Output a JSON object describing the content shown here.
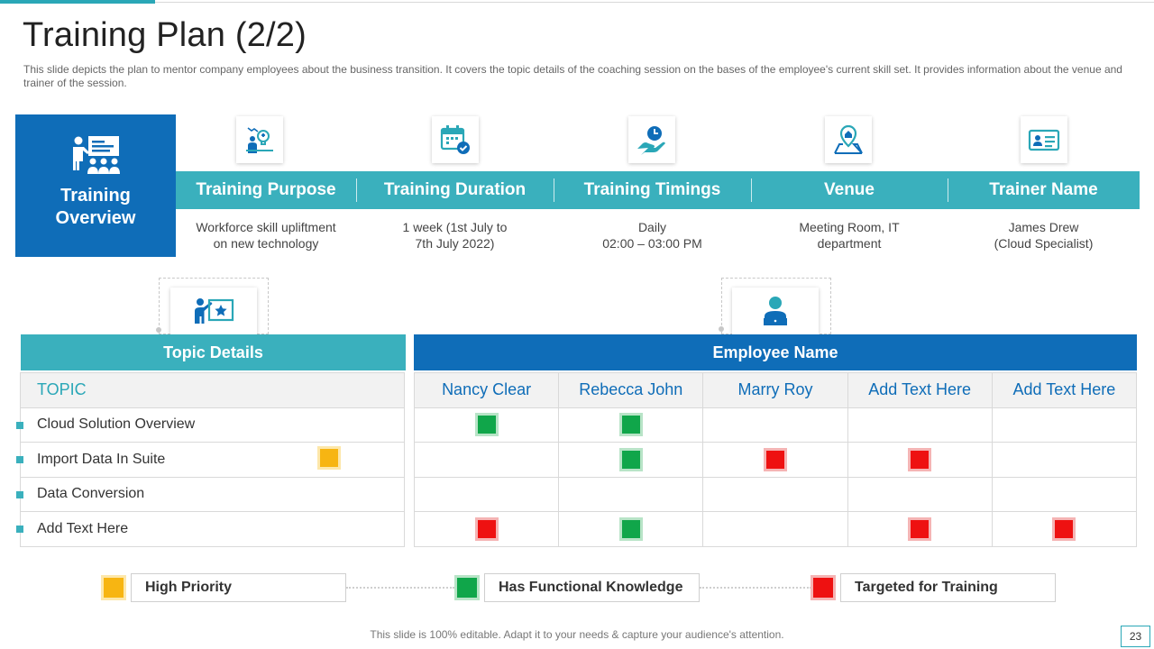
{
  "slide": {
    "title": "Training Plan (2/2)",
    "subtitle": "This slide depicts the plan to mentor company employees about the business transition. It covers  the topic details of the coaching session on the bases of the employee's current skill set. It provides  information about the venue  and trainer of the session.",
    "footer": "This slide is 100% editable. Adapt it to your needs & capture your audience's attention.",
    "page_number": "23"
  },
  "overview": {
    "label_line1": "Training",
    "label_line2": "Overview",
    "icon": "presentation-audience-icon",
    "columns": [
      {
        "header": "Training Purpose",
        "line1": "Workforce skill upliftment",
        "line2": "on new technology",
        "icon": "idea-person-icon"
      },
      {
        "header": "Training Duration",
        "line1": "1 week (1st July to",
        "line2": "7th July 2022)",
        "icon": "calendar-check-icon"
      },
      {
        "header": "Training Timings",
        "line1": "Daily",
        "line2": "02:00 – 03:00 PM",
        "icon": "clock-hand-icon"
      },
      {
        "header": "Venue",
        "line1": "Meeting Room, IT",
        "line2": "department",
        "icon": "location-map-icon"
      },
      {
        "header": "Trainer Name",
        "line1": "James Drew",
        "line2": "(Cloud Specialist)",
        "icon": "id-card-icon"
      }
    ]
  },
  "topics": {
    "header": "Topic Details",
    "column_label": "TOPIC",
    "icon": "teacher-board-icon",
    "items": [
      "Cloud Solution Overview",
      "Import Data In Suite",
      "Data Conversion",
      "Add Text Here"
    ]
  },
  "employees": {
    "header": "Employee Name",
    "icon": "user-laptop-icon",
    "names": [
      "Nancy Clear",
      "Rebecca John",
      "Marry Roy",
      "Add Text Here",
      "Add Text Here"
    ],
    "matrix": [
      [
        "green",
        "green",
        "",
        "",
        ""
      ],
      [
        "",
        "green",
        "red",
        "red",
        ""
      ],
      [
        "",
        "",
        "",
        "",
        ""
      ],
      [
        "red",
        "green",
        "",
        "red",
        "red"
      ]
    ]
  },
  "legend": {
    "high_priority": "High Priority",
    "functional": "Has Functional Knowledge",
    "targeted": "Targeted for Training"
  },
  "colors": {
    "teal": "#3ab0bd",
    "blue": "#0f6db8",
    "green": "#10a64a",
    "red": "#ee1111",
    "yellow": "#f7b512"
  }
}
